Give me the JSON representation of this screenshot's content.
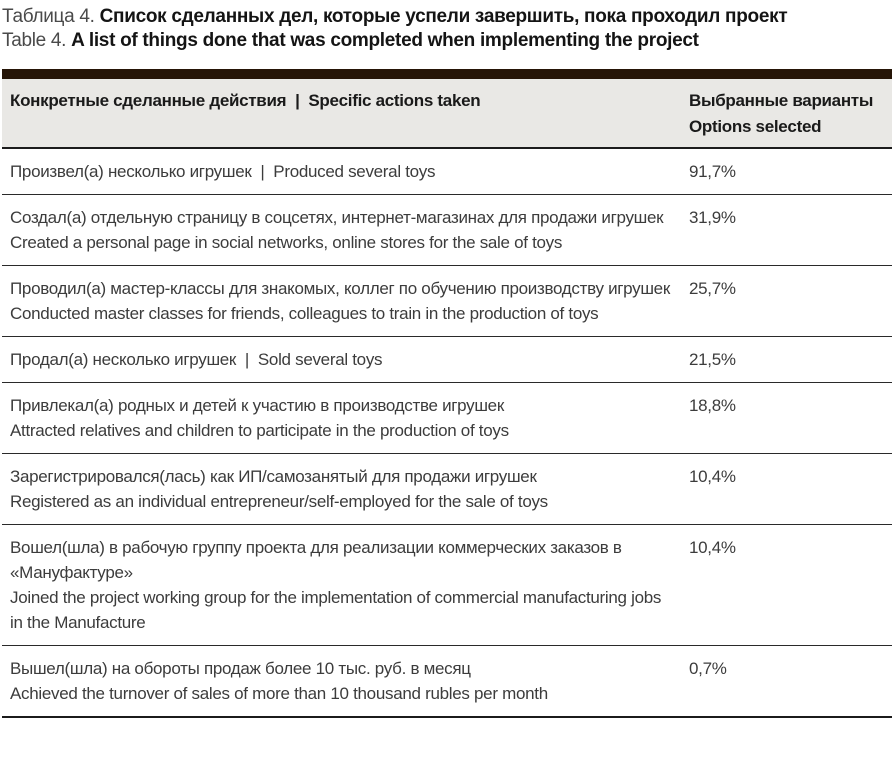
{
  "title": {
    "ru_prefix": "Таблица 4.",
    "ru_main": "Список сделанных дел, которые успели завершить, пока проходил проект",
    "en_prefix": "Table 4.",
    "en_main": "A list of things done that was completed when implementing the project"
  },
  "table": {
    "header": {
      "col_actions": "Конкретные сделанные действия  |  Specific actions taken",
      "col_options_line1": "Выбранные варианты",
      "col_options_line2": "Options selected"
    },
    "rows": [
      {
        "ru": "Произвел(а) несколько игрушек  |  Produced several toys",
        "en": "",
        "value": "91,7%"
      },
      {
        "ru": "Создал(а) отдельную страницу в соцсетях, интернет-магазинах для продажи игрушек",
        "en": "Created a personal page in social networks, online stores for the sale of toys",
        "value": "31,9%"
      },
      {
        "ru": "Проводил(а) мастер-классы для знакомых, коллег по обучению производству игрушек",
        "en": "Conducted master classes for friends, colleagues to train in the production of toys",
        "value": "25,7%"
      },
      {
        "ru": "Продал(а) несколько игрушек  |  Sold several toys",
        "en": "",
        "value": "21,5%"
      },
      {
        "ru": "Привлекал(а) родных и детей к участию в производстве игрушек",
        "en": "Attracted relatives and children to participate in the production of toys",
        "value": "18,8%"
      },
      {
        "ru": "Зарегистрировался(лась) как ИП/самозанятый для продажи игрушек",
        "en": "Registered as an individual entrepreneur/self-employed for the sale of toys",
        "value": "10,4%"
      },
      {
        "ru": "Вошел(шла) в рабочую группу проекта для реализации коммерческих заказов в «Мануфактуре»",
        "en": "Joined the project working group for the implementation of commercial manufacturing jobs in the Manufacture",
        "value": "10,4%"
      },
      {
        "ru": "Вышел(шла) на обороты продаж более 10 тыс. руб. в месяц",
        "en": "Achieved the turnover of sales of more than 10 thousand rubles per month",
        "value": "0,7%"
      }
    ]
  },
  "chart_data": {
    "type": "table",
    "title": "Таблица 4. Список сделанных дел, которые успели завершить, пока проходил проект / Table 4. A list of things done that was completed when implementing the project",
    "categories": [
      "Произвел(а) несколько игрушек / Produced several toys",
      "Создал(а) отдельную страницу в соцсетях, интернет-магазинах для продажи игрушек / Created a personal page in social networks, online stores for the sale of toys",
      "Проводил(а) мастер-классы для знакомых, коллег по обучению производству игрушек / Conducted master classes for friends, colleagues to train in the production of toys",
      "Продал(а) несколько игрушек / Sold several toys",
      "Привлекал(а) родных и детей к участию в производстве игрушек / Attracted relatives and children to participate in the production of toys",
      "Зарегистрировался(лась) как ИП/самозанятый для продажи игрушек / Registered as an individual entrepreneur/self-employed for the sale of toys",
      "Вошел(шла) в рабочую группу проекта для реализации коммерческих заказов в «Мануфактуре» / Joined the project working group for the implementation of commercial manufacturing jobs in the Manufacture",
      "Вышел(шла) на обороты продаж более 10 тыс. руб. в месяц / Achieved the turnover of sales of more than 10 thousand rubles per month"
    ],
    "values_percent": [
      91.7,
      31.9,
      25.7,
      21.5,
      18.8,
      10.4,
      10.4,
      0.7
    ]
  },
  "colors": {
    "table_top_bar": "#261507",
    "header_background": "#e9e8e5",
    "row_separator": "#2a2a2a",
    "table_bottom_border": "#1b1b1b",
    "body_text": "#3c3c3c",
    "header_text": "#1a1a1a",
    "title_bold_text": "#141414"
  }
}
